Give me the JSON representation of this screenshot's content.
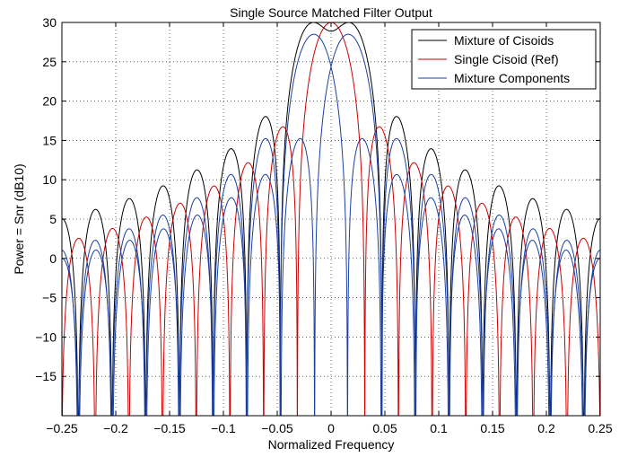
{
  "chart_data": {
    "type": "line",
    "title": "Single Source Matched Filter Output",
    "xlabel": "Normalized Frequency",
    "ylabel": "Power = Snr (dB10)",
    "xlim": [
      -0.25,
      0.25
    ],
    "ylim": [
      -20,
      30
    ],
    "grid": true,
    "grid_style": "dotted",
    "legend_position": "top-right",
    "x_ticks": [
      "-0.25",
      "-0.2",
      "-0.15",
      "-0.1",
      "-0.05",
      "0",
      "0.05",
      "0.1",
      "0.15",
      "0.2",
      "0.25"
    ],
    "y_ticks": [
      "-15",
      "-10",
      "-5",
      "0",
      "5",
      "10",
      "15",
      "20",
      "25",
      "30"
    ],
    "x_tick_values": [
      -0.25,
      -0.2,
      -0.15,
      -0.1,
      -0.05,
      0,
      0.05,
      0.1,
      0.15,
      0.2,
      0.25
    ],
    "y_tick_values": [
      -15,
      -10,
      -5,
      0,
      5,
      10,
      15,
      20,
      25,
      30
    ],
    "series": [
      {
        "name": "Mixture of Cisoids",
        "color": "#000000",
        "model": "sum of two sinc-squared responses",
        "peak_db": 30,
        "main_lobe_x": [
          -0.016,
          0.016
        ],
        "null_spacing": 0.0313,
        "first_sidelobe_peaks_db": [
          19.3,
          19.3
        ],
        "sidelobe_peaks_db_near_edges": [
          7.5,
          7.5
        ]
      },
      {
        "name": "Single Cisoid (Ref)",
        "color": "#cc0000",
        "model": "sinc-squared response",
        "peak_db": 30,
        "center": 0,
        "null_spacing": 0.0313,
        "first_sidelobe_peaks_db": [
          16.7,
          16.7
        ]
      },
      {
        "name": "Mixture Components",
        "color": "#1a3fa0",
        "model": "two sinc-squared responses",
        "peak_db": 28.5,
        "centers": [
          -0.016,
          0.016
        ],
        "null_spacing": 0.0313,
        "first_sidelobe_peaks_db": [
          15.2,
          15.2
        ]
      }
    ]
  }
}
